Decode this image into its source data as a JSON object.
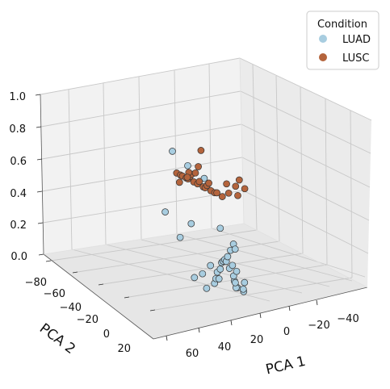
{
  "chart_data": {
    "type": "scatter",
    "projection": "3d",
    "xlabel": "PCA 1",
    "ylabel": "PCA 2",
    "zlabel": "",
    "x_ticks": [
      "60",
      "40",
      "20",
      "0",
      "−20",
      "−40"
    ],
    "y_ticks": [
      "−80",
      "−60",
      "−40",
      "−20",
      "0",
      "20"
    ],
    "z_ticks": [
      "0.0",
      "0.2",
      "0.4",
      "0.6",
      "0.8",
      "1.0"
    ],
    "xlim": [
      -55,
      75
    ],
    "ylim": [
      -88,
      30
    ],
    "zlim": [
      0,
      1
    ],
    "grid": true,
    "legend": {
      "title": "Condition",
      "placement": "top-right",
      "entries": [
        {
          "label": "LUAD",
          "color": "#a8cde0"
        },
        {
          "label": "LUSC",
          "color": "#b4643c"
        }
      ]
    },
    "series": [
      {
        "name": "LUAD",
        "color": "#a8cde0",
        "points": [
          [
            44,
            -30,
            0.62
          ],
          [
            28,
            -30,
            0.58
          ],
          [
            38,
            -45,
            0.45
          ],
          [
            26,
            -15,
            0.33
          ],
          [
            4,
            -18,
            0.32
          ],
          [
            -5,
            -30,
            0.3
          ],
          [
            -2,
            -8,
            0.27
          ],
          [
            -30,
            -10,
            0.18
          ],
          [
            -44,
            -22,
            0.1
          ],
          [
            -40,
            -20,
            0.06
          ],
          [
            -32,
            -28,
            0.0
          ],
          [
            -28,
            -30,
            0.0
          ],
          [
            -26,
            -26,
            0.05
          ],
          [
            -24,
            -28,
            0.0
          ],
          [
            -18,
            -30,
            0.05
          ],
          [
            -16,
            -32,
            0.0
          ],
          [
            -14,
            -34,
            0.06
          ],
          [
            -12,
            -22,
            0.0
          ],
          [
            -10,
            -24,
            0.02
          ],
          [
            -8,
            -26,
            0.05
          ],
          [
            -6,
            -28,
            0.0
          ],
          [
            -4,
            -30,
            0.05
          ],
          [
            -2,
            -32,
            0.08
          ],
          [
            0,
            -34,
            0.08
          ],
          [
            2,
            -36,
            0.08
          ],
          [
            4,
            -38,
            0.06
          ],
          [
            6,
            -40,
            0.08
          ],
          [
            8,
            -42,
            0.0
          ],
          [
            10,
            -44,
            0.1
          ],
          [
            12,
            -46,
            0.0
          ],
          [
            14,
            -48,
            0.12
          ],
          [
            16,
            -50,
            0.08
          ],
          [
            6,
            -25,
            0.0
          ],
          [
            2,
            -18,
            0.0
          ],
          [
            -18,
            -14,
            0.0
          ]
        ]
      },
      {
        "name": "LUSC",
        "color": "#b4643c",
        "points": [
          [
            40,
            -30,
            0.5
          ],
          [
            36,
            -30,
            0.5
          ],
          [
            34,
            -30,
            0.5
          ],
          [
            30,
            -30,
            0.5
          ],
          [
            28,
            -30,
            0.5
          ],
          [
            26,
            -30,
            0.52
          ],
          [
            24,
            -30,
            0.54
          ],
          [
            22,
            -30,
            0.5
          ],
          [
            20,
            -30,
            0.56
          ],
          [
            18,
            -30,
            0.5
          ],
          [
            16,
            -30,
            0.52
          ],
          [
            12,
            -30,
            0.5
          ],
          [
            10,
            -30,
            0.5
          ],
          [
            8,
            -30,
            0.52
          ],
          [
            6,
            -30,
            0.54
          ],
          [
            4,
            -30,
            0.5
          ],
          [
            0,
            -30,
            0.5
          ],
          [
            28,
            -38,
            0.66
          ],
          [
            24,
            -34,
            0.58
          ],
          [
            38,
            -36,
            0.5
          ],
          [
            -2,
            -36,
            0.55
          ],
          [
            -4,
            -36,
            0.5
          ],
          [
            -8,
            -38,
            0.55
          ],
          [
            -10,
            -38,
            0.5
          ],
          [
            -12,
            -38,
            0.6
          ],
          [
            -14,
            -40,
            0.55
          ],
          [
            30,
            -26,
            0.48
          ],
          [
            36,
            -34,
            0.48
          ],
          [
            -8,
            -30,
            0.5
          ],
          [
            -6,
            -28,
            0.52
          ]
        ]
      }
    ]
  }
}
